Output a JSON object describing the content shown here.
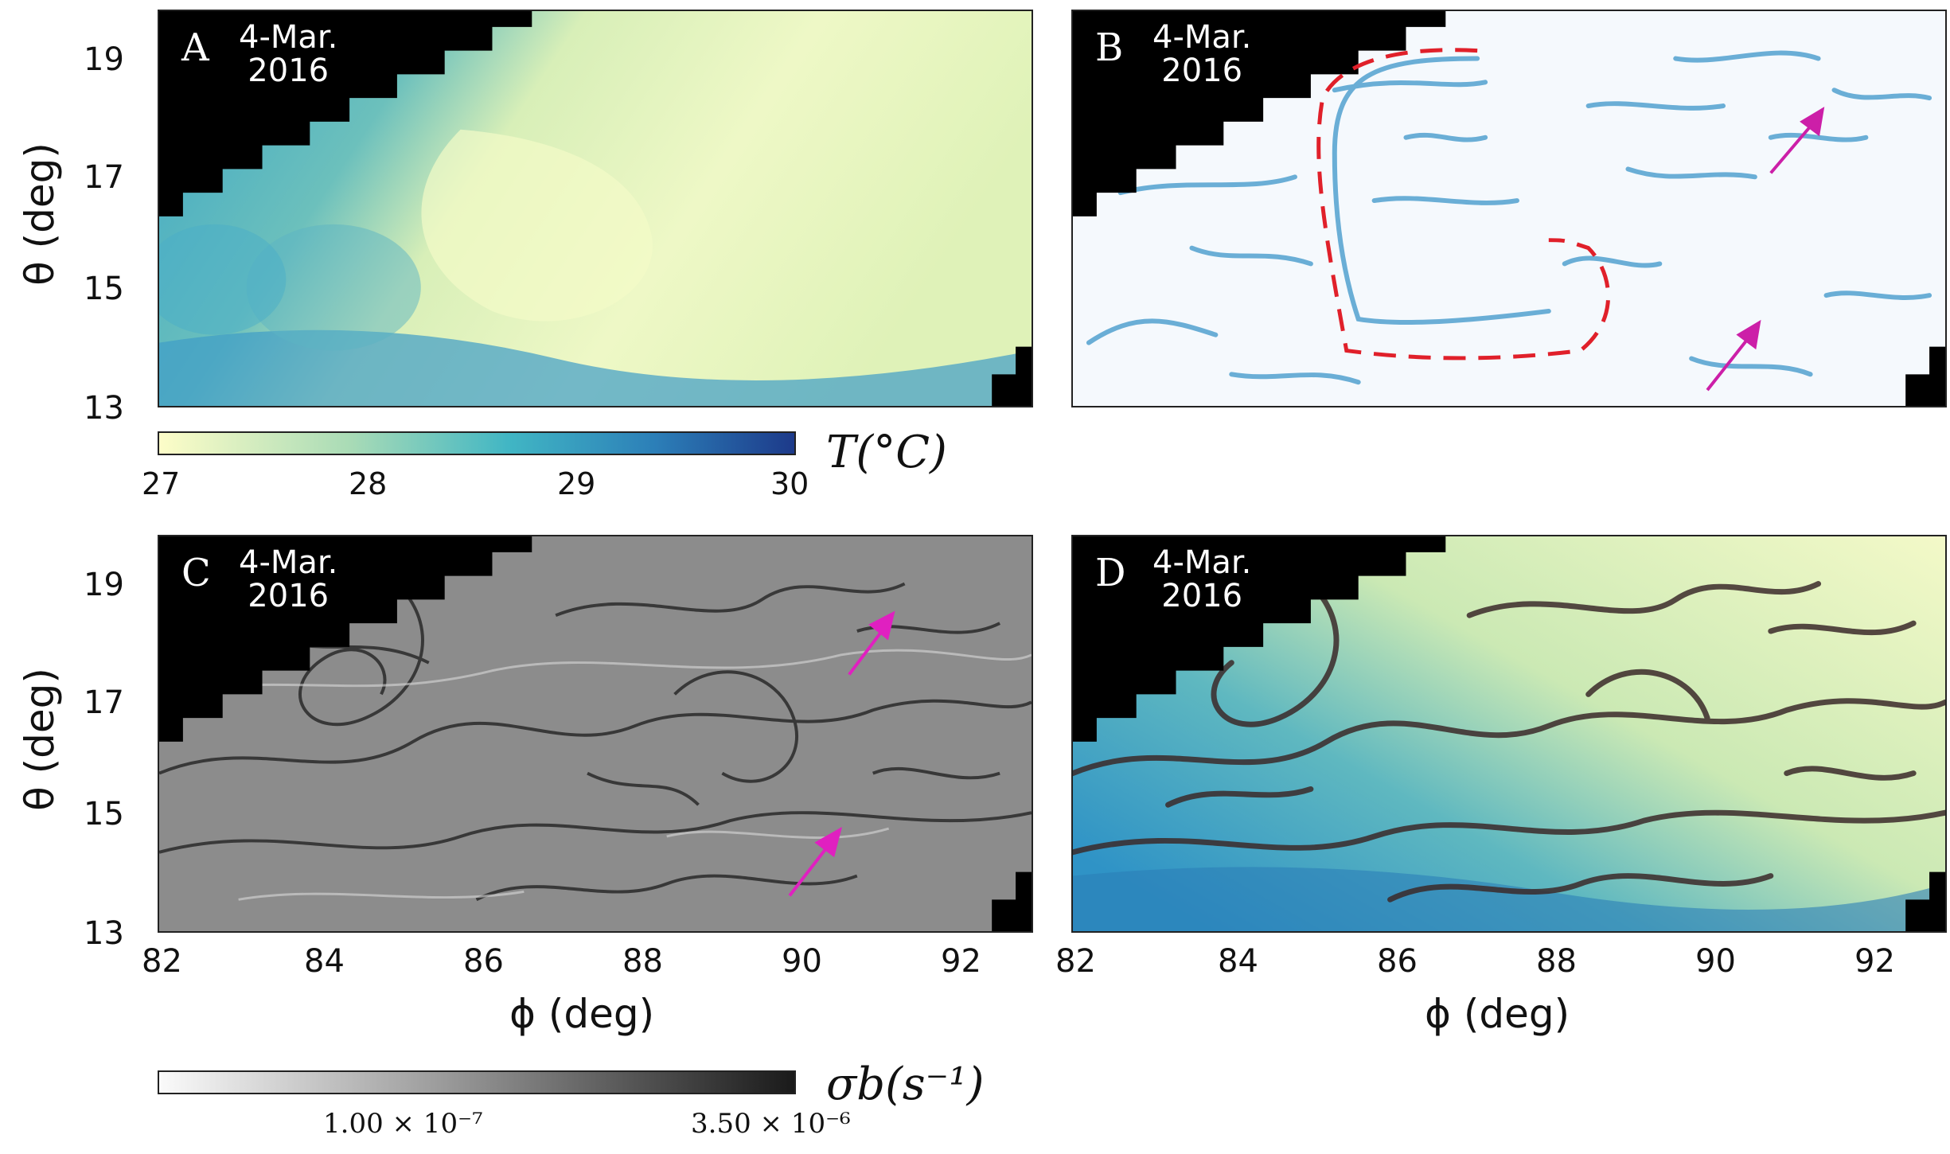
{
  "panels": [
    {
      "letter": "A",
      "date_line1": "4-Mar.",
      "date_line2": "2016"
    },
    {
      "letter": "B",
      "date_line1": "4-Mar.",
      "date_line2": "2016"
    },
    {
      "letter": "C",
      "date_line1": "4-Mar.",
      "date_line2": "2016"
    },
    {
      "letter": "D",
      "date_line1": "4-Mar.",
      "date_line2": "2016"
    }
  ],
  "axes": {
    "ylabel": "θ (deg)",
    "xlabel": "ϕ (deg)",
    "yticks": [
      "19",
      "17",
      "15",
      "13"
    ],
    "xticks": [
      "82",
      "84",
      "86",
      "88",
      "90",
      "92"
    ]
  },
  "colorbar_temperature": {
    "label": "T(°C)",
    "ticks": [
      "27",
      "28",
      "29",
      "30"
    ],
    "colors": [
      "#fdfdc8",
      "#a9dbb6",
      "#41b6c4",
      "#2c7fb8",
      "#1d3a8a"
    ]
  },
  "colorbar_sigma": {
    "label": "σb(s⁻¹)",
    "ticks": [
      "1.00 × 10⁻⁷",
      "3.50 × 10⁻⁶"
    ]
  },
  "colors": {
    "land": "#000000",
    "ridge_blue": "#6aaed6",
    "dashed_outline": "#e0202a",
    "arrow": "#cc1fa8"
  }
}
